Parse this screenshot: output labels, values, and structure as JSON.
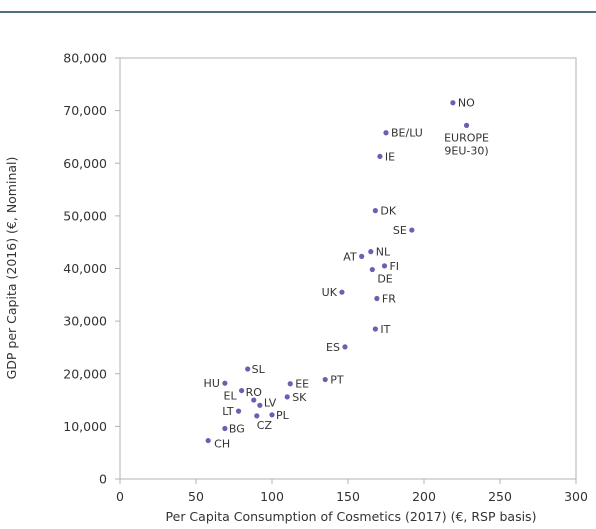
{
  "chart_data": {
    "type": "scatter",
    "title": "",
    "xlabel": "Per Capita Consumption of Cosmetics (2017) (€, RSP basis)",
    "ylabel": "GDP per Capita (2016) (€, Nominal)",
    "xlim": [
      0,
      300
    ],
    "ylim": [
      0,
      80000
    ],
    "x_ticks": [
      0,
      50,
      100,
      150,
      200,
      250,
      300
    ],
    "x_tick_labels": [
      "0",
      "50",
      "100",
      "150",
      "200",
      "250",
      "300"
    ],
    "y_ticks": [
      0,
      10000,
      20000,
      30000,
      40000,
      50000,
      60000,
      70000,
      80000
    ],
    "y_tick_labels": [
      "0",
      "10,000",
      "20,000",
      "30,000",
      "40,000",
      "50,000",
      "60,000",
      "70,000",
      "80,000"
    ],
    "grid": false,
    "legend": "none",
    "marker_color": "#6a5fb0",
    "points": [
      {
        "label": "NO",
        "x": 219,
        "y": 71500
      },
      {
        "label": "BE/LU",
        "x": 175,
        "y": 65800
      },
      {
        "label": "EUROPE\n9EU-30)",
        "x": 228,
        "y": 67200
      },
      {
        "label": "IE",
        "x": 171,
        "y": 61300
      },
      {
        "label": "DK",
        "x": 168,
        "y": 51000
      },
      {
        "label": "SE",
        "x": 192,
        "y": 47300
      },
      {
        "label": "NL",
        "x": 165,
        "y": 43200
      },
      {
        "label": "AT",
        "x": 159,
        "y": 42300
      },
      {
        "label": "FI",
        "x": 174,
        "y": 40500
      },
      {
        "label": "DE",
        "x": 166,
        "y": 39800
      },
      {
        "label": "UK",
        "x": 146,
        "y": 35500
      },
      {
        "label": "FR",
        "x": 169,
        "y": 34300
      },
      {
        "label": "IT",
        "x": 168,
        "y": 28500
      },
      {
        "label": "ES",
        "x": 148,
        "y": 25100
      },
      {
        "label": "SL",
        "x": 84,
        "y": 20900
      },
      {
        "label": "PT",
        "x": 135,
        "y": 18900
      },
      {
        "label": "HU",
        "x": 69,
        "y": 18200
      },
      {
        "label": "EE",
        "x": 112,
        "y": 18100
      },
      {
        "label": "EL",
        "x": 80,
        "y": 16800
      },
      {
        "label": "RO",
        "x": 88,
        "y": 15000
      },
      {
        "label": "SK",
        "x": 110,
        "y": 15600
      },
      {
        "label": "LV",
        "x": 92,
        "y": 14000
      },
      {
        "label": "LT",
        "x": 78,
        "y": 12900
      },
      {
        "label": "CZ",
        "x": 90,
        "y": 12000
      },
      {
        "label": "PL",
        "x": 100,
        "y": 12200
      },
      {
        "label": "BG",
        "x": 69,
        "y": 9600
      },
      {
        "label": "CH",
        "x": 58,
        "y": 7300
      }
    ]
  }
}
